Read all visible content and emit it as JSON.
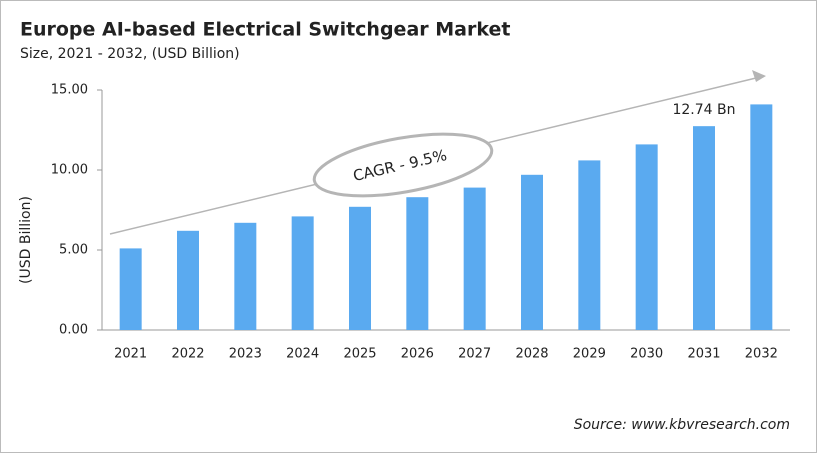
{
  "chart_data": {
    "type": "bar",
    "title": "Europe AI-based Electrical Switchgear Market",
    "subtitle": "Size, 2021 - 2032, (USD Billion)",
    "y_label": "(USD Billion)",
    "annotation": "CAGR - 9.5%",
    "source": "Source: www.kbvresearch.com",
    "categories": [
      "2021",
      "2022",
      "2023",
      "2024",
      "2025",
      "2026",
      "2027",
      "2028",
      "2029",
      "2030",
      "2031",
      "2032"
    ],
    "values": [
      5.1,
      6.2,
      6.7,
      7.1,
      7.7,
      8.3,
      8.9,
      9.7,
      10.6,
      11.6,
      12.74,
      14.1
    ],
    "value_labels": [
      null,
      null,
      null,
      null,
      null,
      null,
      null,
      null,
      null,
      null,
      "12.74 Bn",
      null
    ],
    "color": "#5aaaf0",
    "ylim": [
      0,
      15
    ],
    "yticks": [
      {
        "value": 0,
        "label": "0.00"
      },
      {
        "value": 5,
        "label": "5.00"
      },
      {
        "value": 10,
        "label": "10.00"
      },
      {
        "value": 15,
        "label": "15.00"
      }
    ],
    "grid": false
  }
}
